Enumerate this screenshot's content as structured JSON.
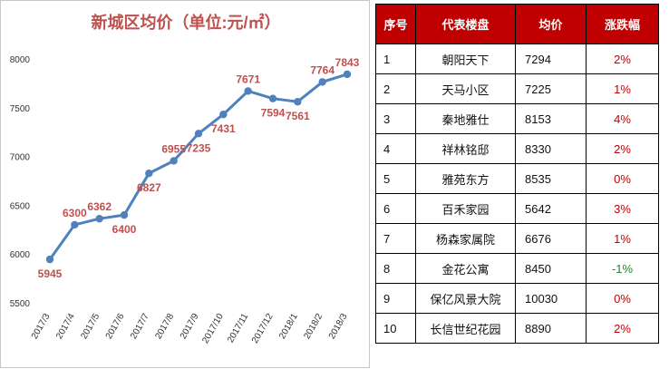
{
  "chart_data": {
    "type": "line",
    "title": "新城区均价（单位:元/㎡）",
    "categories": [
      "2017/3",
      "2017/4",
      "2017/5",
      "2017/6",
      "2017/7",
      "2017/8",
      "2017/9",
      "2017/10",
      "2017/11",
      "2017/12",
      "2018/1",
      "2018/2",
      "2018/3"
    ],
    "series": [
      {
        "name": "均价",
        "values": [
          5945,
          6300,
          6362,
          6400,
          6827,
          6955,
          7235,
          7431,
          7671,
          7594,
          7561,
          7764,
          7843
        ]
      }
    ],
    "labels_below": [
      true,
      false,
      false,
      true,
      true,
      false,
      true,
      true,
      false,
      true,
      true,
      false,
      false
    ],
    "ylim": [
      5500,
      8000
    ],
    "yticks": [
      5500,
      6000,
      6500,
      7000,
      7500,
      8000
    ],
    "xlabel": "",
    "ylabel": "",
    "colors": {
      "line": "#4f81bd",
      "labels": "#c0504d",
      "title": "#c0504d"
    }
  },
  "table": {
    "headers": [
      "序号",
      "代表楼盘",
      "均价",
      "涨跌幅"
    ],
    "rows": [
      {
        "idx": "1",
        "name": "朝阳天下",
        "price": "7294",
        "change": "2%"
      },
      {
        "idx": "2",
        "name": "天马小区",
        "price": "7225",
        "change": "1%"
      },
      {
        "idx": "3",
        "name": "秦地雅仕",
        "price": "8153",
        "change": "4%"
      },
      {
        "idx": "4",
        "name": "祥林铭邸",
        "price": "8330",
        "change": "2%"
      },
      {
        "idx": "5",
        "name": "雅苑东方",
        "price": "8535",
        "change": "0%"
      },
      {
        "idx": "6",
        "name": "百禾家园",
        "price": "5642",
        "change": "3%"
      },
      {
        "idx": "7",
        "name": "杨森家属院",
        "price": "6676",
        "change": "1%"
      },
      {
        "idx": "8",
        "name": "金花公寓",
        "price": "8450",
        "change": "-1%"
      },
      {
        "idx": "9",
        "name": "保亿风景大院",
        "price": "10030",
        "change": "0%"
      },
      {
        "idx": "10",
        "name": "长信世纪花园",
        "price": "8890",
        "change": "2%"
      }
    ]
  }
}
